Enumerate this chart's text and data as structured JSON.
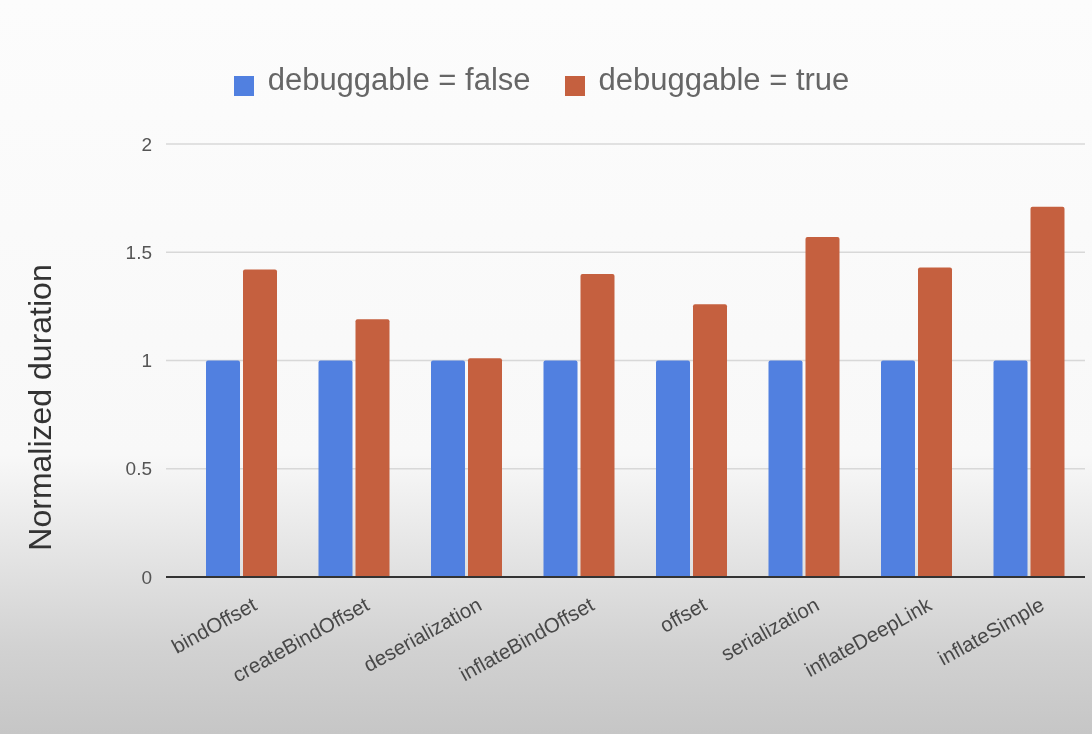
{
  "chart_data": {
    "type": "bar",
    "ylabel": "Normalized duration",
    "categories": [
      "bindOffset",
      "createBindOffset",
      "deserialization",
      "inflateBindOffset",
      "offset",
      "serialization",
      "inflateDeepLink",
      "inflateSimple"
    ],
    "series": [
      {
        "name": "debuggable = false",
        "color": "#5180e0",
        "values": [
          1,
          1,
          1,
          1,
          1,
          1,
          1,
          1
        ]
      },
      {
        "name": "debuggable = true",
        "color": "#c5603f",
        "values": [
          1.42,
          1.19,
          1.01,
          1.4,
          1.26,
          1.57,
          1.43,
          1.71
        ]
      }
    ],
    "ylim": [
      0,
      2
    ],
    "yticks": [
      0,
      0.5,
      1,
      1.5,
      2
    ],
    "grid": "y",
    "legend": "top"
  }
}
